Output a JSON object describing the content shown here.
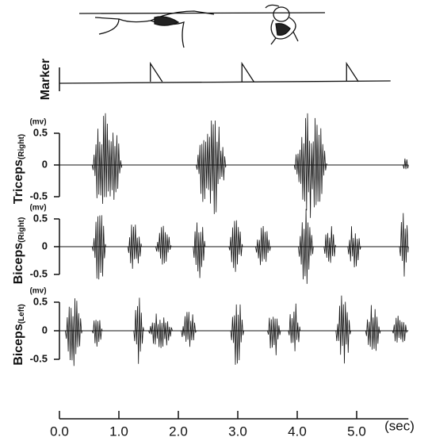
{
  "time_axis": {
    "xlim": [
      0,
      5.87
    ],
    "xticks": [
      {
        "value": 0,
        "label": "0.0"
      },
      {
        "value": 1,
        "label": "1.0"
      },
      {
        "value": 2,
        "label": "2.0"
      },
      {
        "value": 3,
        "label": "3.0"
      },
      {
        "value": 4,
        "label": "4.0"
      },
      {
        "value": 5,
        "label": "5.0"
      }
    ],
    "x_label": "(sec)"
  },
  "chart_data": [
    {
      "type": "marker",
      "name": "Marker",
      "x": [
        1.53,
        3.07,
        4.83
      ],
      "end": 5.57
    },
    {
      "type": "emg",
      "name": "Triceps",
      "qualifier": "(Right)",
      "unit": "(mv)",
      "ylim": [
        -0.5,
        0.5
      ],
      "yticks": [
        0.5,
        0,
        -0.5
      ],
      "bursts": [
        {
          "start": 0.55,
          "end": 1.05,
          "amplitude": 0.95
        },
        {
          "start": 2.3,
          "end": 2.8,
          "amplitude": 0.95
        },
        {
          "start": 3.95,
          "end": 4.5,
          "amplitude": 0.95
        },
        {
          "start": 5.78,
          "end": 5.87,
          "amplitude": 0.15
        }
      ]
    },
    {
      "type": "emg",
      "name": "Biceps",
      "qualifier": "(Right)",
      "unit": "(mv)",
      "ylim": [
        -0.5,
        0.5
      ],
      "yticks": [
        0.5,
        0,
        -0.5
      ],
      "bursts": [
        {
          "start": 0.55,
          "end": 0.78,
          "amplitude": 0.75
        },
        {
          "start": 1.15,
          "end": 1.38,
          "amplitude": 0.5
        },
        {
          "start": 1.62,
          "end": 1.88,
          "amplitude": 0.4
        },
        {
          "start": 2.25,
          "end": 2.45,
          "amplitude": 0.65
        },
        {
          "start": 2.85,
          "end": 3.08,
          "amplitude": 0.5
        },
        {
          "start": 3.3,
          "end": 3.55,
          "amplitude": 0.4
        },
        {
          "start": 4.02,
          "end": 4.27,
          "amplitude": 0.7
        },
        {
          "start": 4.45,
          "end": 4.65,
          "amplitude": 0.4
        },
        {
          "start": 4.85,
          "end": 5.07,
          "amplitude": 0.45
        },
        {
          "start": 5.72,
          "end": 5.87,
          "amplitude": 0.75
        }
      ]
    },
    {
      "type": "emg",
      "name": "Biceps",
      "qualifier": "(Left)",
      "unit": "(mv)",
      "ylim": [
        -0.5,
        0.5
      ],
      "yticks": [
        0.5,
        0,
        -0.5
      ],
      "bursts": [
        {
          "start": 0.1,
          "end": 0.38,
          "amplitude": 0.65
        },
        {
          "start": 0.55,
          "end": 0.72,
          "amplitude": 0.3
        },
        {
          "start": 1.25,
          "end": 1.42,
          "amplitude": 0.6
        },
        {
          "start": 1.5,
          "end": 1.9,
          "amplitude": 0.35
        },
        {
          "start": 2.05,
          "end": 2.3,
          "amplitude": 0.4
        },
        {
          "start": 2.88,
          "end": 3.1,
          "amplitude": 0.65
        },
        {
          "start": 3.5,
          "end": 3.72,
          "amplitude": 0.5
        },
        {
          "start": 3.85,
          "end": 4.05,
          "amplitude": 0.55
        },
        {
          "start": 4.65,
          "end": 4.9,
          "amplitude": 0.7
        },
        {
          "start": 5.15,
          "end": 5.4,
          "amplitude": 0.5
        },
        {
          "start": 5.6,
          "end": 5.85,
          "amplitude": 0.35
        }
      ]
    }
  ]
}
